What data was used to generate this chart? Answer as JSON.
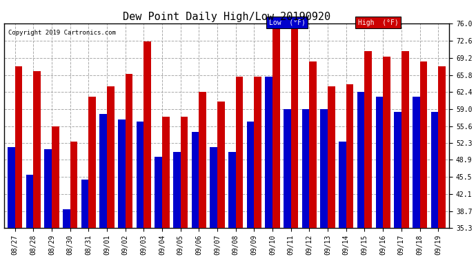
{
  "title": "Dew Point Daily High/Low 20190920",
  "copyright": "Copyright 2019 Cartronics.com",
  "dates": [
    "08/27",
    "08/28",
    "08/29",
    "08/30",
    "08/31",
    "09/01",
    "09/02",
    "09/03",
    "09/04",
    "09/05",
    "09/06",
    "09/07",
    "09/08",
    "09/09",
    "09/10",
    "09/11",
    "09/12",
    "09/13",
    "09/14",
    "09/15",
    "09/16",
    "09/17",
    "09/18",
    "09/19"
  ],
  "low": [
    51.5,
    46.0,
    51.0,
    39.0,
    45.0,
    58.0,
    57.0,
    56.5,
    49.5,
    50.5,
    54.5,
    51.5,
    50.5,
    56.5,
    65.5,
    59.0,
    59.0,
    59.0,
    52.5,
    62.5,
    61.5,
    58.5,
    61.5,
    58.5
  ],
  "high": [
    67.5,
    66.5,
    55.5,
    52.5,
    61.5,
    63.5,
    66.0,
    72.5,
    57.5,
    57.5,
    62.5,
    60.5,
    65.5,
    65.5,
    75.5,
    75.5,
    68.5,
    63.5,
    64.0,
    70.5,
    69.5,
    70.5,
    68.5,
    67.5
  ],
  "low_color": "#0000cc",
  "high_color": "#cc0000",
  "bg_color": "#ffffff",
  "grid_color": "#aaaaaa",
  "ylim_min": 35.3,
  "ylim_max": 76.0,
  "yticks": [
    35.3,
    38.7,
    42.1,
    45.5,
    48.9,
    52.3,
    55.6,
    59.0,
    62.4,
    65.8,
    69.2,
    72.6,
    76.0
  ],
  "bar_width": 0.4,
  "legend_low_label": "Low  (°F)",
  "legend_high_label": "High  (°F)"
}
